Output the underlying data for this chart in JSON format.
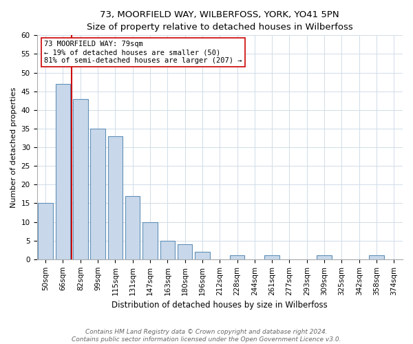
{
  "title": "73, MOORFIELD WAY, WILBERFOSS, YORK, YO41 5PN",
  "subtitle": "Size of property relative to detached houses in Wilberfoss",
  "xlabel": "Distribution of detached houses by size in Wilberfoss",
  "ylabel": "Number of detached properties",
  "bar_labels": [
    "50sqm",
    "66sqm",
    "82sqm",
    "99sqm",
    "115sqm",
    "131sqm",
    "147sqm",
    "163sqm",
    "180sqm",
    "196sqm",
    "212sqm",
    "228sqm",
    "244sqm",
    "261sqm",
    "277sqm",
    "293sqm",
    "309sqm",
    "325sqm",
    "342sqm",
    "358sqm",
    "374sqm"
  ],
  "bar_heights": [
    15,
    47,
    43,
    35,
    33,
    17,
    10,
    5,
    4,
    2,
    0,
    1,
    0,
    1,
    0,
    0,
    1,
    0,
    0,
    1,
    0
  ],
  "bar_color": "#c8d8ea",
  "bar_edge_color": "#6090b8",
  "marker_label": "73 MOORFIELD WAY: 79sqm",
  "annotation_line1": "← 19% of detached houses are smaller (50)",
  "annotation_line2": "81% of semi-detached houses are larger (207) →",
  "marker_color": "#cc0000",
  "ylim": [
    0,
    60
  ],
  "yticks": [
    0,
    5,
    10,
    15,
    20,
    25,
    30,
    35,
    40,
    45,
    50,
    55,
    60
  ],
  "footnote1": "Contains HM Land Registry data © Crown copyright and database right 2024.",
  "footnote2": "Contains public sector information licensed under the Open Government Licence v3.0.",
  "bg_color": "#ffffff",
  "plot_bg_color": "#ffffff",
  "grid_color": "#d0dce8",
  "title_fontsize": 9.5,
  "subtitle_fontsize": 8.5,
  "ylabel_fontsize": 8,
  "xlabel_fontsize": 8.5,
  "tick_fontsize": 7.5,
  "annot_fontsize": 7.5,
  "footnote_fontsize": 6.5
}
